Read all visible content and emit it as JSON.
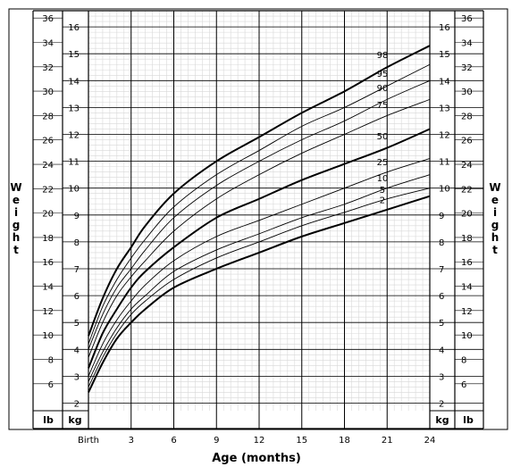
{
  "chart_data": {
    "type": "line",
    "xlabel": "Age (months)",
    "ylabel_letters": [
      "W",
      "e",
      "i",
      "g",
      "h",
      "t"
    ],
    "x_tick_labels": [
      {
        "x": 0,
        "label": "Birth"
      },
      {
        "x": 3,
        "label": "3"
      },
      {
        "x": 6,
        "label": "6"
      },
      {
        "x": 9,
        "label": "9"
      },
      {
        "x": 12,
        "label": "12"
      },
      {
        "x": 15,
        "label": "15"
      },
      {
        "x": 18,
        "label": "18"
      },
      {
        "x": 21,
        "label": "21"
      },
      {
        "x": 24,
        "label": "24"
      }
    ],
    "xlim": [
      0,
      24
    ],
    "ylim_kg": [
      1.5,
      16.8
    ],
    "kg_ticks": [
      "2",
      "3",
      "4",
      "5",
      "6",
      "7",
      "8",
      "9",
      "10",
      "11",
      "12",
      "13",
      "14",
      "15",
      "16"
    ],
    "lb_ticks": [
      "6",
      "8",
      "10",
      "12",
      "14",
      "16",
      "18",
      "20",
      "22",
      "24",
      "26",
      "28",
      "30",
      "32",
      "34",
      "36"
    ],
    "unit_kg": "kg",
    "unit_lb": "lb",
    "grid": true,
    "series": [
      {
        "name": "98",
        "bold": true,
        "x": [
          0,
          1,
          2,
          3,
          4,
          6,
          9,
          12,
          15,
          18,
          21,
          24
        ],
        "y": [
          4.5,
          5.9,
          7.0,
          7.8,
          8.6,
          9.8,
          11.0,
          11.9,
          12.8,
          13.6,
          14.5,
          15.3
        ]
      },
      {
        "name": "95",
        "bold": false,
        "x": [
          0,
          1,
          2,
          3,
          4,
          6,
          9,
          12,
          15,
          18,
          21,
          24
        ],
        "y": [
          4.2,
          5.6,
          6.6,
          7.4,
          8.1,
          9.3,
          10.5,
          11.4,
          12.3,
          13.0,
          13.8,
          14.6
        ]
      },
      {
        "name": "90",
        "bold": false,
        "x": [
          0,
          1,
          2,
          3,
          4,
          6,
          9,
          12,
          15,
          18,
          21,
          24
        ],
        "y": [
          4.0,
          5.3,
          6.3,
          7.0,
          7.7,
          8.9,
          10.1,
          11.0,
          11.8,
          12.5,
          13.3,
          14.0
        ]
      },
      {
        "name": "75",
        "bold": false,
        "x": [
          0,
          1,
          2,
          3,
          4,
          6,
          9,
          12,
          15,
          18,
          21,
          24
        ],
        "y": [
          3.7,
          5.0,
          6.0,
          6.7,
          7.3,
          8.4,
          9.6,
          10.5,
          11.3,
          12.0,
          12.7,
          13.3
        ]
      },
      {
        "name": "50",
        "bold": true,
        "x": [
          0,
          1,
          2,
          3,
          4,
          6,
          9,
          12,
          15,
          18,
          21,
          24
        ],
        "y": [
          3.3,
          4.6,
          5.5,
          6.3,
          6.9,
          7.8,
          8.9,
          9.6,
          10.3,
          10.9,
          11.5,
          12.2
        ]
      },
      {
        "name": "25",
        "bold": false,
        "x": [
          0,
          1,
          2,
          3,
          4,
          6,
          9,
          12,
          15,
          18,
          21,
          24
        ],
        "y": [
          3.0,
          4.2,
          5.1,
          5.8,
          6.4,
          7.3,
          8.2,
          8.8,
          9.4,
          10.0,
          10.6,
          11.1
        ]
      },
      {
        "name": "10",
        "bold": false,
        "x": [
          0,
          1,
          2,
          3,
          4,
          6,
          9,
          12,
          15,
          18,
          21,
          24
        ],
        "y": [
          2.8,
          3.9,
          4.8,
          5.5,
          6.0,
          6.9,
          7.7,
          8.3,
          8.9,
          9.4,
          10.0,
          10.5
        ]
      },
      {
        "name": "5",
        "bold": false,
        "x": [
          0,
          1,
          2,
          3,
          4,
          6,
          9,
          12,
          15,
          18,
          21,
          24
        ],
        "y": [
          2.6,
          3.7,
          4.6,
          5.3,
          5.8,
          6.6,
          7.4,
          8.0,
          8.6,
          9.1,
          9.6,
          10.0
        ]
      },
      {
        "name": "2",
        "bold": true,
        "x": [
          0,
          1,
          2,
          3,
          4,
          6,
          9,
          12,
          15,
          18,
          21,
          24
        ],
        "y": [
          2.4,
          3.5,
          4.4,
          5.0,
          5.5,
          6.3,
          7.0,
          7.6,
          8.2,
          8.7,
          9.2,
          9.7
        ]
      }
    ]
  }
}
